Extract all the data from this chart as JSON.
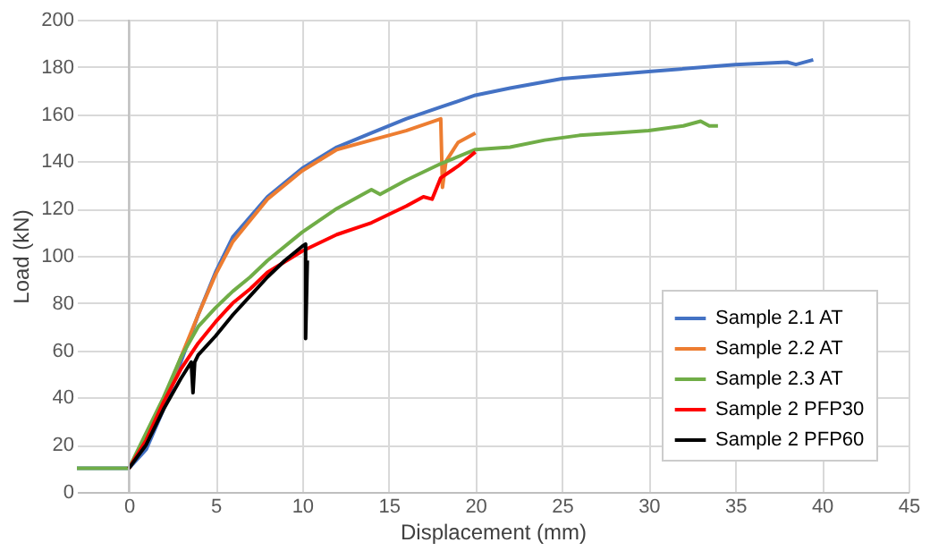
{
  "chart_data": {
    "type": "line",
    "xlabel": "Displacement (mm)",
    "ylabel": "Load (kN)",
    "xlim": [
      -3,
      45
    ],
    "xticks": [
      0,
      5,
      10,
      15,
      20,
      25,
      30,
      35,
      40,
      45
    ],
    "ylim": [
      0,
      200
    ],
    "yticks": [
      0,
      20,
      40,
      60,
      80,
      100,
      120,
      140,
      160,
      180,
      200
    ],
    "grid": true,
    "legend": "bottom right",
    "line_style": "solid",
    "marker": "none",
    "series": [
      {
        "name": "Sample 2.1 AT",
        "color": "#4472c4",
        "x": [
          -3,
          0,
          1,
          2,
          3,
          4,
          5,
          6,
          8,
          10,
          12,
          14,
          16,
          18,
          20,
          22,
          25,
          30,
          35,
          38,
          38.5,
          39.5
        ],
        "values": [
          10,
          10,
          18,
          35,
          55,
          75,
          93,
          108,
          125,
          137,
          146,
          152,
          158,
          163,
          168,
          171,
          175,
          178,
          181,
          182,
          181,
          183
        ]
      },
      {
        "name": "Sample 2.2 AT",
        "color": "#ed7d31",
        "x": [
          1,
          2,
          3,
          4,
          5,
          6,
          8,
          10,
          12,
          14,
          16,
          18,
          18.1,
          18.3,
          19,
          20
        ],
        "values": [
          22,
          38,
          57,
          75,
          92,
          106,
          124,
          136,
          145,
          149,
          153,
          158,
          129,
          140,
          148,
          152
        ]
      },
      {
        "name": "Sample 2.3 AT",
        "color": "#70ad47",
        "x": [
          -3,
          0,
          1,
          2,
          3,
          4,
          5,
          6,
          7,
          8,
          10,
          12,
          14,
          14.5,
          16,
          18,
          20,
          22,
          24,
          26,
          28,
          30,
          32,
          33,
          33.5,
          34
        ],
        "values": [
          10,
          10,
          25,
          40,
          57,
          70,
          78,
          85,
          91,
          98,
          110,
          120,
          128,
          126,
          132,
          139,
          145,
          146,
          149,
          151,
          152,
          153,
          155,
          157,
          155,
          155
        ]
      },
      {
        "name": "Sample 2 PFP30",
        "color": "#ff0000",
        "x": [
          0,
          1,
          2,
          3,
          4,
          5,
          6,
          7,
          8,
          10,
          12,
          14,
          16,
          17,
          17.5,
          18,
          19,
          20
        ],
        "values": [
          10,
          22,
          38,
          52,
          63,
          72,
          80,
          86,
          93,
          102,
          109,
          114,
          121,
          125,
          124,
          133,
          138,
          144
        ]
      },
      {
        "name": "Sample 2 PFP60",
        "color": "#000000",
        "x": [
          0,
          1,
          2,
          3,
          3.6,
          3.7,
          3.8,
          4,
          5,
          6,
          7,
          8,
          9,
          10,
          10.2,
          10.2,
          10.3
        ],
        "values": [
          10,
          20,
          35,
          48,
          55,
          42,
          55,
          58,
          66,
          75,
          83,
          91,
          98,
          104,
          105,
          65,
          98
        ]
      }
    ]
  }
}
